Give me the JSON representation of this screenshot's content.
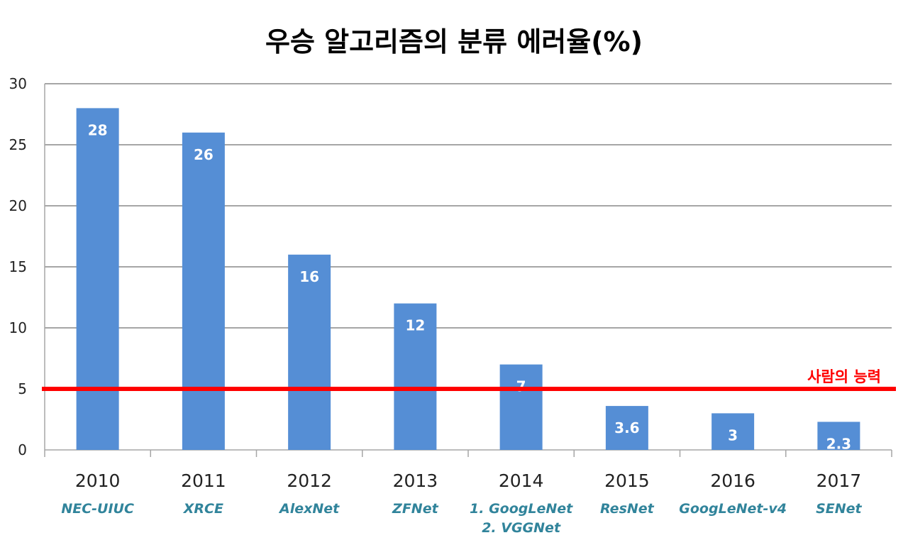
{
  "chart_data": {
    "type": "bar",
    "title": "우승 알고리즘의 분류 에러율(%)",
    "categories": [
      "2010",
      "2011",
      "2012",
      "2013",
      "2014",
      "2015",
      "2016",
      "2017"
    ],
    "algorithms": [
      [
        "NEC-UIUC"
      ],
      [
        "XRCE"
      ],
      [
        "AlexNet"
      ],
      [
        "ZFNet"
      ],
      [
        "1. GoogLeNet",
        "2. VGGNet"
      ],
      [
        "ResNet"
      ],
      [
        "GoogLeNet-v4"
      ],
      [
        "SENet"
      ]
    ],
    "values": [
      28,
      26,
      16,
      12,
      7,
      3.6,
      3,
      2.3
    ],
    "data_labels": [
      "28",
      "26",
      "16",
      "12",
      "7",
      "3.6",
      "3",
      "2.3"
    ],
    "ylim": [
      0,
      30
    ],
    "yticks": [
      0,
      5,
      10,
      15,
      20,
      25,
      30
    ],
    "grid": true,
    "reference_line": {
      "value": 5,
      "label": "사람의 능력",
      "color": "#ff0000"
    },
    "colors": {
      "bar": "#558ed5",
      "algorithm_text": "#31849b",
      "grid": "#a6a6a6",
      "data_label": "#ffffff"
    }
  }
}
